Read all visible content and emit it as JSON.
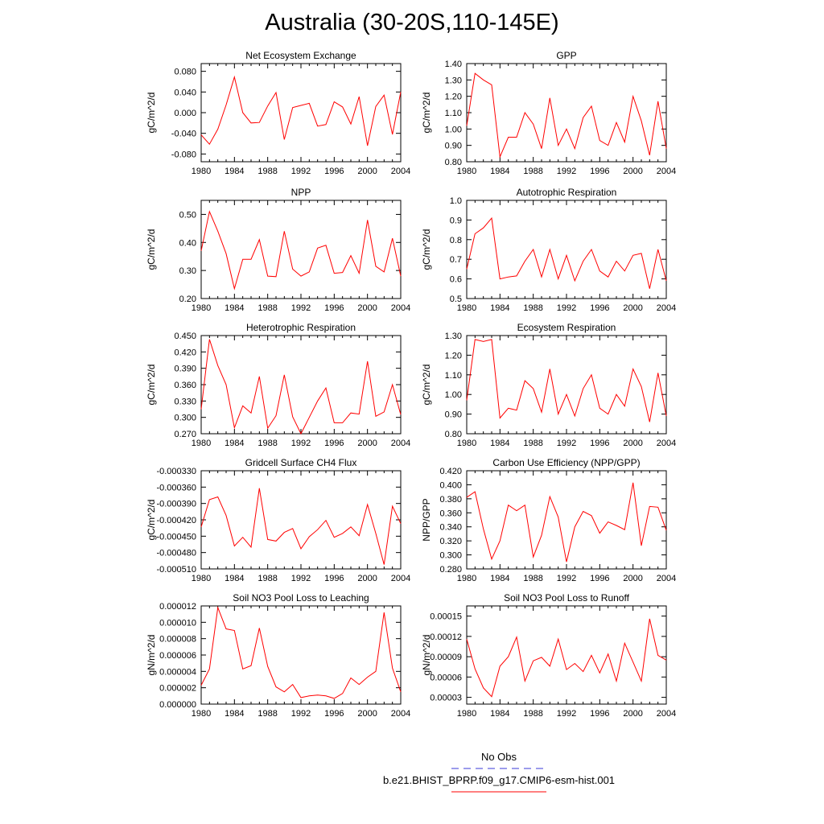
{
  "page": {
    "title": "Australia (30-20S,110-145E)"
  },
  "legend": {
    "obs_label": "No Obs",
    "obs_color": "#3a3ad8",
    "model_label": "b.e21.BHIST_BPRP.f09_g17.CMIP6-esm-hist.001",
    "model_color": "#ff0000"
  },
  "chart_data": [
    {
      "type": "line",
      "title": "Net Ecosystem Exchange",
      "ylabel": "gC/m^2/d",
      "xlim": [
        1980,
        2004
      ],
      "xticks": [
        1980,
        1984,
        1988,
        1992,
        1996,
        2000,
        2004
      ],
      "ylim": [
        -0.095,
        0.095
      ],
      "yticks": [
        -0.08,
        -0.04,
        0.0,
        0.04,
        0.08
      ],
      "ytick_labels": [
        "-0.080",
        "-0.040",
        "0.000",
        "0.040",
        "0.080"
      ],
      "series": [
        {
          "color": "#ff0000",
          "x": [
            1980,
            1981,
            1982,
            1983,
            1984,
            1985,
            1986,
            1987,
            1988,
            1989,
            1990,
            1991,
            1992,
            1993,
            1994,
            1995,
            1996,
            1997,
            1998,
            1999,
            2000,
            2001,
            2002,
            2003,
            2004
          ],
          "values": [
            -0.043,
            -0.061,
            -0.032,
            0.015,
            0.069,
            0.0,
            -0.02,
            -0.019,
            0.013,
            0.039,
            -0.052,
            0.01,
            0.014,
            0.018,
            -0.026,
            -0.023,
            0.021,
            0.011,
            -0.022,
            0.031,
            -0.064,
            0.012,
            0.034,
            -0.042,
            0.04
          ]
        }
      ]
    },
    {
      "type": "line",
      "title": "GPP",
      "ylabel": "gC/m^2/d",
      "xlim": [
        1980,
        2004
      ],
      "xticks": [
        1980,
        1984,
        1988,
        1992,
        1996,
        2000,
        2004
      ],
      "ylim": [
        0.8,
        1.4
      ],
      "yticks": [
        0.8,
        0.9,
        1.0,
        1.1,
        1.2,
        1.3,
        1.4
      ],
      "ytick_labels": [
        "0.80",
        "0.90",
        "1.00",
        "1.10",
        "1.20",
        "1.30",
        "1.40"
      ],
      "series": [
        {
          "color": "#ff0000",
          "x": [
            1980,
            1981,
            1982,
            1983,
            1984,
            1985,
            1986,
            1987,
            1988,
            1989,
            1990,
            1991,
            1992,
            1993,
            1994,
            1995,
            1996,
            1997,
            1998,
            1999,
            2000,
            2001,
            2002,
            2003,
            2004
          ],
          "values": [
            1.02,
            1.34,
            1.3,
            1.27,
            0.83,
            0.95,
            0.95,
            1.1,
            1.03,
            0.88,
            1.19,
            0.9,
            1.0,
            0.88,
            1.07,
            1.14,
            0.93,
            0.9,
            1.04,
            0.92,
            1.2,
            1.05,
            0.84,
            1.17,
            0.88
          ]
        }
      ]
    },
    {
      "type": "line",
      "title": "NPP",
      "ylabel": "gC/m^2/d",
      "xlim": [
        1980,
        2004
      ],
      "xticks": [
        1980,
        1984,
        1988,
        1992,
        1996,
        2000,
        2004
      ],
      "ylim": [
        0.2,
        0.55
      ],
      "yticks": [
        0.2,
        0.3,
        0.4,
        0.5
      ],
      "ytick_labels": [
        "0.20",
        "0.30",
        "0.40",
        "0.50"
      ],
      "series": [
        {
          "color": "#ff0000",
          "x": [
            1980,
            1981,
            1982,
            1983,
            1984,
            1985,
            1986,
            1987,
            1988,
            1989,
            1990,
            1991,
            1992,
            1993,
            1994,
            1995,
            1996,
            1997,
            1998,
            1999,
            2000,
            2001,
            2002,
            2003,
            2004
          ],
          "values": [
            0.37,
            0.51,
            0.44,
            0.36,
            0.235,
            0.34,
            0.34,
            0.41,
            0.28,
            0.278,
            0.44,
            0.305,
            0.28,
            0.295,
            0.38,
            0.39,
            0.29,
            0.293,
            0.353,
            0.29,
            0.48,
            0.315,
            0.295,
            0.415,
            0.28
          ]
        }
      ]
    },
    {
      "type": "line",
      "title": "Autotrophic Respiration",
      "ylabel": "gC/m^2/d",
      "xlim": [
        1980,
        2004
      ],
      "xticks": [
        1980,
        1984,
        1988,
        1992,
        1996,
        2000,
        2004
      ],
      "ylim": [
        0.5,
        1.0
      ],
      "yticks": [
        0.5,
        0.6,
        0.7,
        0.8,
        0.9,
        1.0
      ],
      "ytick_labels": [
        "0.5",
        "0.6",
        "0.7",
        "0.8",
        "0.9",
        "1.0"
      ],
      "series": [
        {
          "color": "#ff0000",
          "x": [
            1980,
            1981,
            1982,
            1983,
            1984,
            1985,
            1986,
            1987,
            1988,
            1989,
            1990,
            1991,
            1992,
            1993,
            1994,
            1995,
            1996,
            1997,
            1998,
            1999,
            2000,
            2001,
            2002,
            2003,
            2004
          ],
          "values": [
            0.65,
            0.83,
            0.86,
            0.91,
            0.6,
            0.61,
            0.615,
            0.69,
            0.75,
            0.61,
            0.75,
            0.6,
            0.72,
            0.59,
            0.69,
            0.75,
            0.64,
            0.61,
            0.69,
            0.64,
            0.72,
            0.73,
            0.55,
            0.75,
            0.59
          ]
        }
      ]
    },
    {
      "type": "line",
      "title": "Heterotrophic Respiration",
      "ylabel": "gC/m^2/d",
      "xlim": [
        1980,
        2004
      ],
      "xticks": [
        1980,
        1984,
        1988,
        1992,
        1996,
        2000,
        2004
      ],
      "ylim": [
        0.27,
        0.45
      ],
      "yticks": [
        0.27,
        0.3,
        0.33,
        0.36,
        0.39,
        0.42,
        0.45
      ],
      "ytick_labels": [
        "0.270",
        "0.300",
        "0.330",
        "0.360",
        "0.390",
        "0.420",
        "0.450"
      ],
      "series": [
        {
          "color": "#ff0000",
          "x": [
            1980,
            1981,
            1982,
            1983,
            1984,
            1985,
            1986,
            1987,
            1988,
            1989,
            1990,
            1991,
            1992,
            1993,
            1994,
            1995,
            1996,
            1997,
            1998,
            1999,
            2000,
            2001,
            2002,
            2003,
            2004
          ],
          "values": [
            0.315,
            0.443,
            0.395,
            0.36,
            0.281,
            0.321,
            0.308,
            0.375,
            0.28,
            0.303,
            0.378,
            0.301,
            0.27,
            0.3,
            0.33,
            0.354,
            0.29,
            0.29,
            0.308,
            0.306,
            0.403,
            0.302,
            0.31,
            0.36,
            0.305
          ]
        }
      ]
    },
    {
      "type": "line",
      "title": "Ecosystem Respiration",
      "ylabel": "gC/m^2/d",
      "xlim": [
        1980,
        2004
      ],
      "xticks": [
        1980,
        1984,
        1988,
        1992,
        1996,
        2000,
        2004
      ],
      "ylim": [
        0.8,
        1.3
      ],
      "yticks": [
        0.8,
        0.9,
        1.0,
        1.1,
        1.2,
        1.3
      ],
      "ytick_labels": [
        "0.80",
        "0.90",
        "1.00",
        "1.10",
        "1.20",
        "1.30"
      ],
      "series": [
        {
          "color": "#ff0000",
          "x": [
            1980,
            1981,
            1982,
            1983,
            1984,
            1985,
            1986,
            1987,
            1988,
            1989,
            1990,
            1991,
            1992,
            1993,
            1994,
            1995,
            1996,
            1997,
            1998,
            1999,
            2000,
            2001,
            2002,
            2003,
            2004
          ],
          "values": [
            0.97,
            1.28,
            1.27,
            1.28,
            0.88,
            0.93,
            0.92,
            1.07,
            1.03,
            0.91,
            1.13,
            0.9,
            1.0,
            0.89,
            1.03,
            1.1,
            0.93,
            0.9,
            1.0,
            0.94,
            1.13,
            1.04,
            0.86,
            1.11,
            0.89
          ]
        }
      ]
    },
    {
      "type": "line",
      "title": "Gridcell Surface CH4 Flux",
      "ylabel": "gC/m^2/d",
      "xlim": [
        1980,
        2004
      ],
      "xticks": [
        1980,
        1984,
        1988,
        1992,
        1996,
        2000,
        2004
      ],
      "ylim": [
        -0.00051,
        -0.00033
      ],
      "yticks": [
        -0.00051,
        -0.00048,
        -0.00045,
        -0.00042,
        -0.00039,
        -0.00036,
        -0.00033
      ],
      "ytick_labels": [
        "-0.000510",
        "-0.000480",
        "-0.000450",
        "-0.000420",
        "-0.000390",
        "-0.000360",
        "-0.000330"
      ],
      "series": [
        {
          "color": "#ff0000",
          "x": [
            1980,
            1981,
            1982,
            1983,
            1984,
            1985,
            1986,
            1987,
            1988,
            1989,
            1990,
            1991,
            1992,
            1993,
            1994,
            1995,
            1996,
            1997,
            1998,
            1999,
            2000,
            2001,
            2002,
            2003,
            2004
          ],
          "values": [
            -0.000433,
            -0.000383,
            -0.000378,
            -0.000412,
            -0.000468,
            -0.000452,
            -0.00047,
            -0.000362,
            -0.000456,
            -0.000459,
            -0.000443,
            -0.000436,
            -0.000473,
            -0.000451,
            -0.000438,
            -0.000421,
            -0.000452,
            -0.000445,
            -0.000433,
            -0.000449,
            -0.000392,
            -0.000445,
            -0.000502,
            -0.000395,
            -0.000427
          ]
        }
      ]
    },
    {
      "type": "line",
      "title": "Carbon Use Efficiency (NPP/GPP)",
      "ylabel": "NPP/GPP",
      "xlim": [
        1980,
        2004
      ],
      "xticks": [
        1980,
        1984,
        1988,
        1992,
        1996,
        2000,
        2004
      ],
      "ylim": [
        0.28,
        0.42
      ],
      "yticks": [
        0.28,
        0.3,
        0.32,
        0.34,
        0.36,
        0.38,
        0.4,
        0.42
      ],
      "ytick_labels": [
        "0.280",
        "0.300",
        "0.320",
        "0.340",
        "0.360",
        "0.380",
        "0.400",
        "0.420"
      ],
      "series": [
        {
          "color": "#ff0000",
          "x": [
            1980,
            1981,
            1982,
            1983,
            1984,
            1985,
            1986,
            1987,
            1988,
            1989,
            1990,
            1991,
            1992,
            1993,
            1994,
            1995,
            1996,
            1997,
            1998,
            1999,
            2000,
            2001,
            2002,
            2003,
            2004
          ],
          "values": [
            0.382,
            0.39,
            0.337,
            0.294,
            0.32,
            0.371,
            0.363,
            0.371,
            0.297,
            0.328,
            0.383,
            0.354,
            0.29,
            0.34,
            0.362,
            0.356,
            0.331,
            0.347,
            0.342,
            0.336,
            0.403,
            0.313,
            0.369,
            0.368,
            0.335
          ]
        }
      ]
    },
    {
      "type": "line",
      "title": "Soil NO3 Pool Loss to Leaching",
      "ylabel": "gN/m^2/d",
      "xlim": [
        1980,
        2004
      ],
      "xticks": [
        1980,
        1984,
        1988,
        1992,
        1996,
        2000,
        2004
      ],
      "ylim": [
        0.0,
        1.2e-05
      ],
      "yticks": [
        0.0,
        2e-06,
        4e-06,
        6e-06,
        8e-06,
        1e-05,
        1.2e-05
      ],
      "ytick_labels": [
        "0.000000",
        "0.000002",
        "0.000004",
        "0.000006",
        "0.000008",
        "0.000010",
        "0.000012"
      ],
      "series": [
        {
          "color": "#ff0000",
          "x": [
            1980,
            1981,
            1982,
            1983,
            1984,
            1985,
            1986,
            1987,
            1988,
            1989,
            1990,
            1991,
            1992,
            1993,
            1994,
            1995,
            1996,
            1997,
            1998,
            1999,
            2000,
            2001,
            2002,
            2003,
            2004
          ],
          "values": [
            2.3e-06,
            4.3e-06,
            1.18e-05,
            9.2e-06,
            9e-06,
            4.3e-06,
            4.7e-06,
            9.3e-06,
            4.6e-06,
            2.1e-06,
            1.5e-06,
            2.4e-06,
            8e-07,
            1e-06,
            1.1e-06,
            1e-06,
            7e-07,
            1.3e-06,
            3.2e-06,
            2.4e-06,
            3.3e-06,
            4e-06,
            1.12e-05,
            4.4e-06,
            1.5e-06
          ]
        }
      ]
    },
    {
      "type": "line",
      "title": "Soil NO3 Pool Loss to Runoff",
      "ylabel": "gN/m^2/d",
      "xlim": [
        1980,
        2004
      ],
      "xticks": [
        1980,
        1984,
        1988,
        1992,
        1996,
        2000,
        2004
      ],
      "ylim": [
        2e-05,
        0.000165
      ],
      "yticks": [
        3e-05,
        6e-05,
        9e-05,
        0.00012,
        0.00015
      ],
      "ytick_labels": [
        "0.00003",
        "0.00006",
        "0.00009",
        "0.00012",
        "0.00015"
      ],
      "series": [
        {
          "color": "#ff0000",
          "x": [
            1980,
            1981,
            1982,
            1983,
            1984,
            1985,
            1986,
            1987,
            1988,
            1989,
            1990,
            1991,
            1992,
            1993,
            1994,
            1995,
            1996,
            1997,
            1998,
            1999,
            2000,
            2001,
            2002,
            2003,
            2004
          ],
          "values": [
            0.000116,
            7.2e-05,
            4.4e-05,
            3.1e-05,
            7.6e-05,
            9e-05,
            0.000119,
            5.4e-05,
            8.4e-05,
            8.9e-05,
            7.6e-05,
            0.000116,
            7.1e-05,
            8e-05,
            6.8e-05,
            9.2e-05,
            6.6e-05,
            9.4e-05,
            5.4e-05,
            0.00011,
            8.2e-05,
            5.4e-05,
            0.000146,
            9.2e-05,
            8.5e-05
          ]
        }
      ]
    }
  ]
}
